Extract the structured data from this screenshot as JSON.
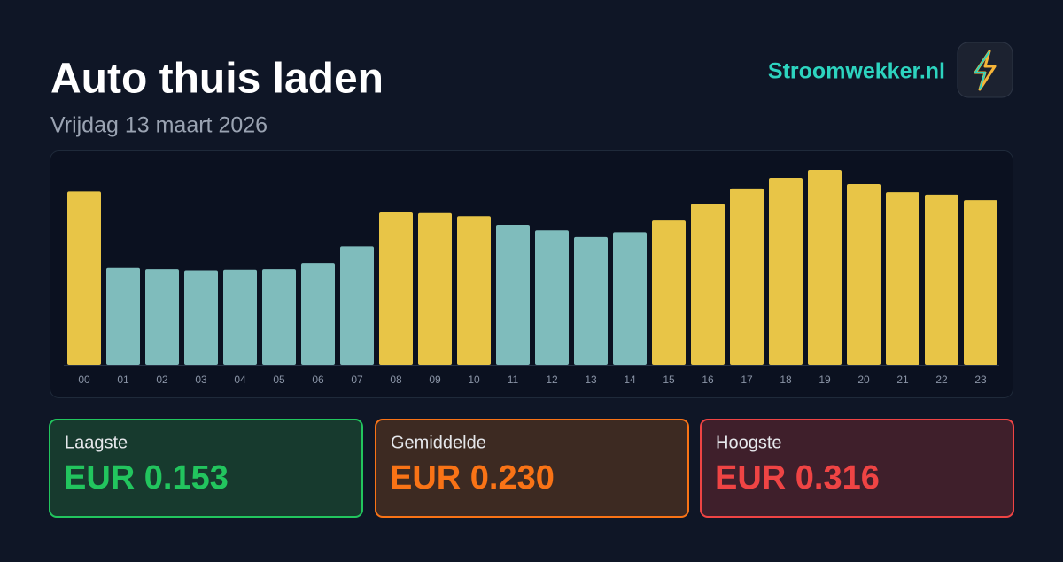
{
  "header": {
    "title": "Auto thuis laden",
    "subtitle": "Vrijdag 13 maart 2026",
    "brand": "Stroomwekker.nl"
  },
  "chart_data": {
    "type": "bar",
    "categories": [
      "00",
      "01",
      "02",
      "03",
      "04",
      "05",
      "06",
      "07",
      "08",
      "09",
      "10",
      "11",
      "12",
      "13",
      "14",
      "15",
      "16",
      "17",
      "18",
      "19",
      "20",
      "21",
      "22",
      "23"
    ],
    "values": [
      0.281,
      0.157,
      0.155,
      0.153,
      0.154,
      0.155,
      0.165,
      0.192,
      0.247,
      0.246,
      0.241,
      0.227,
      0.218,
      0.207,
      0.215,
      0.234,
      0.261,
      0.286,
      0.303,
      0.316,
      0.293,
      0.28,
      0.276,
      0.267
    ],
    "colors": [
      "#e8c547",
      "#7fbcbc",
      "#7fbcbc",
      "#7fbcbc",
      "#7fbcbc",
      "#7fbcbc",
      "#7fbcbc",
      "#7fbcbc",
      "#e8c547",
      "#e8c547",
      "#e8c547",
      "#7fbcbc",
      "#7fbcbc",
      "#7fbcbc",
      "#7fbcbc",
      "#e8c547",
      "#e8c547",
      "#e8c547",
      "#e8c547",
      "#e8c547",
      "#e8c547",
      "#e8c547",
      "#e8c547",
      "#e8c547"
    ]
  },
  "stats": [
    {
      "label": "Laagste",
      "value": "EUR 0.153"
    },
    {
      "label": "Gemiddelde",
      "value": "EUR 0.230"
    },
    {
      "label": "Hoogste",
      "value": "EUR 0.316"
    }
  ]
}
